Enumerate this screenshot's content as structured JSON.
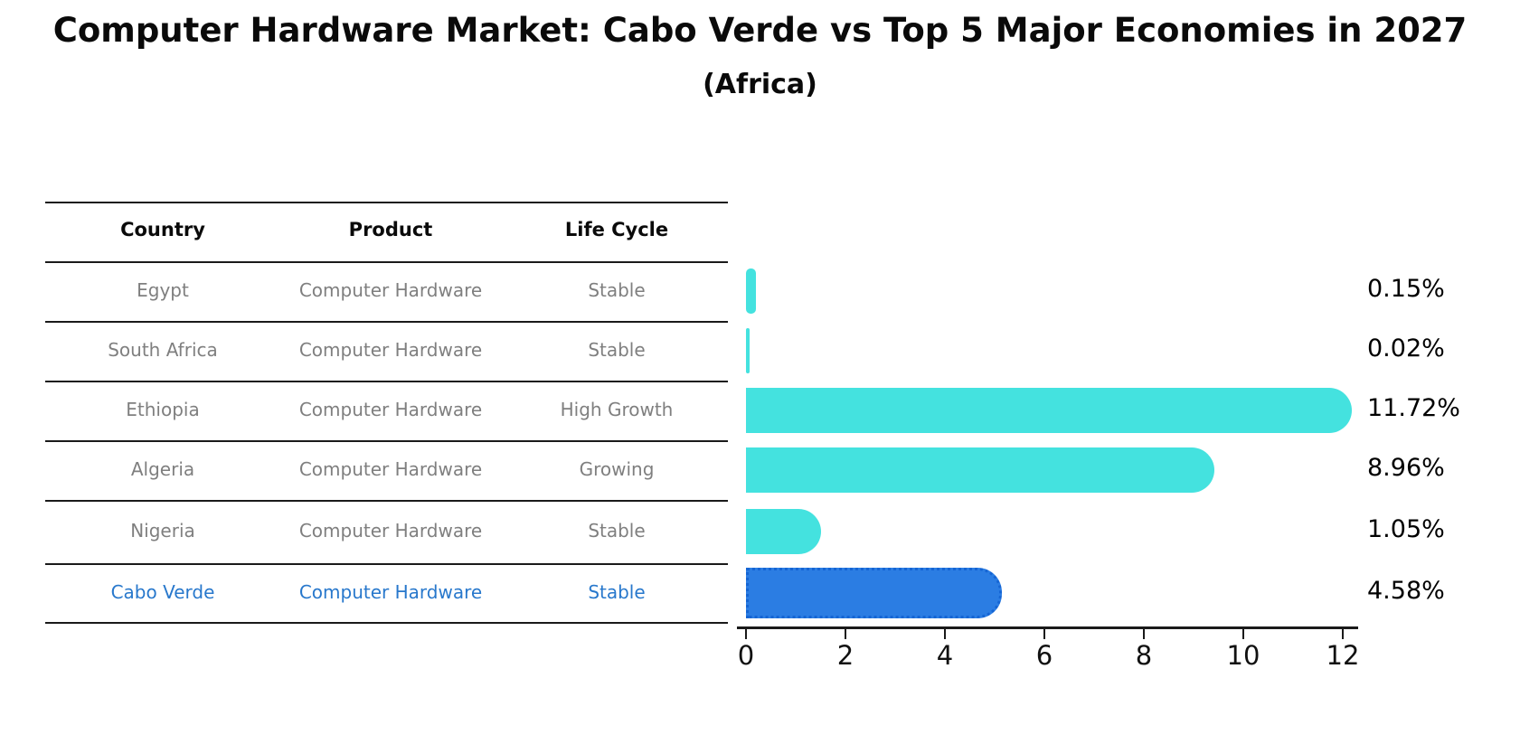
{
  "title": "Computer Hardware Market: Cabo Verde vs Top 5 Major Economies in 2027",
  "subtitle": "(Africa)",
  "table": {
    "headers": [
      "Country",
      "Product",
      "Life Cycle"
    ],
    "rows": [
      {
        "country": "Egypt",
        "product": "Computer Hardware",
        "life_cycle": "Stable",
        "highlighted": false
      },
      {
        "country": "South Africa",
        "product": "Computer Hardware",
        "life_cycle": "Stable",
        "highlighted": false
      },
      {
        "country": "Ethiopia",
        "product": "Computer Hardware",
        "life_cycle": "High Growth",
        "highlighted": false
      },
      {
        "country": "Algeria",
        "product": "Computer Hardware",
        "life_cycle": "Growing",
        "highlighted": false
      },
      {
        "country": "Nigeria",
        "product": "Computer Hardware",
        "life_cycle": "Stable",
        "highlighted": false
      },
      {
        "country": "Cabo Verde",
        "product": "Computer Hardware",
        "life_cycle": "Stable",
        "highlighted": true
      }
    ]
  },
  "chart_data": {
    "type": "bar",
    "orientation": "horizontal",
    "title": "Computer Hardware Market: Cabo Verde vs Top 5 Major Economies in 2027",
    "subtitle": "(Africa)",
    "categories": [
      "Egypt",
      "South Africa",
      "Ethiopia",
      "Algeria",
      "Nigeria",
      "Cabo Verde"
    ],
    "values": [
      0.15,
      0.02,
      11.72,
      8.96,
      1.05,
      4.58
    ],
    "value_labels": [
      "0.15%",
      "0.02%",
      "11.72%",
      "8.96%",
      "1.05%",
      "4.58%"
    ],
    "xlabel": "",
    "ylabel": "",
    "xlim": [
      0,
      12
    ],
    "xticks": [
      "0",
      "2",
      "4",
      "6",
      "8",
      "10",
      "12"
    ],
    "grid": false,
    "legend": "none",
    "highlight_index": 5
  },
  "colors": {
    "bar_cyan": "#44e2df",
    "bar_blue": "#2b7de3",
    "bar_blue_edge": "#1565d4",
    "highlight_text": "#2878cc",
    "table_text": "#7f7f7f",
    "axis": "#1a1a1a"
  }
}
